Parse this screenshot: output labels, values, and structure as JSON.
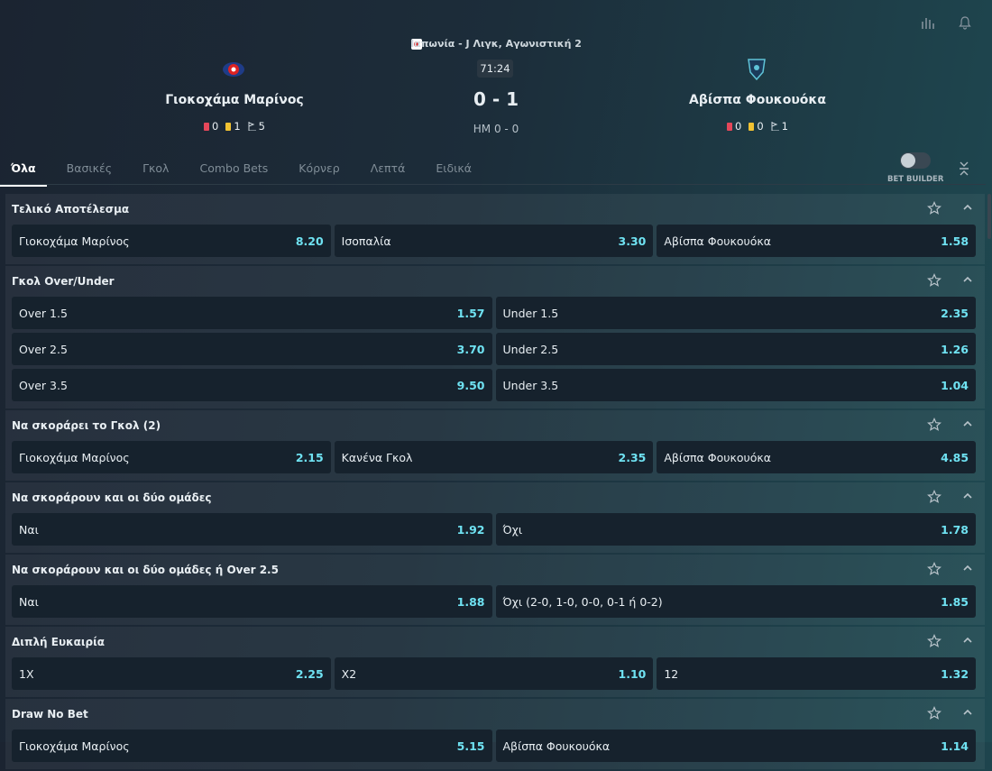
{
  "header": {
    "competition": "Ιαπωνία - J Λιγκ, Αγωνιστική 2",
    "clock": "71:24",
    "score": "0 - 1",
    "halftime": "HM 0 - 0",
    "home": {
      "name": "Γιοκοχάμα Μαρίνος",
      "red": 0,
      "yellow": 1,
      "corners": 5
    },
    "away": {
      "name": "Αβίσπα Φουκουόκα",
      "red": 0,
      "yellow": 0,
      "corners": 1
    }
  },
  "tabs": [
    "Όλα",
    "Βασικές",
    "Γκολ",
    "Combo Bets",
    "Κόρνερ",
    "Λεπτά",
    "Ειδικά"
  ],
  "bet_builder": "BET BUILDER",
  "markets": [
    {
      "title": "Τελικό Αποτέλεσμα",
      "rows": [
        [
          {
            "label": "Γιοκοχάμα Μαρίνος",
            "odds": "8.20"
          },
          {
            "label": "Ισοπαλία",
            "odds": "3.30"
          },
          {
            "label": "Αβίσπα Φουκουόκα",
            "odds": "1.58"
          }
        ]
      ]
    },
    {
      "title": "Γκολ Over/Under",
      "rows": [
        [
          {
            "label": "Over 1.5",
            "odds": "1.57"
          },
          {
            "label": "Under 1.5",
            "odds": "2.35"
          }
        ],
        [
          {
            "label": "Over 2.5",
            "odds": "3.70"
          },
          {
            "label": "Under 2.5",
            "odds": "1.26"
          }
        ],
        [
          {
            "label": "Over 3.5",
            "odds": "9.50"
          },
          {
            "label": "Under 3.5",
            "odds": "1.04"
          }
        ]
      ]
    },
    {
      "title": "Να σκοράρει το Γκολ (2)",
      "rows": [
        [
          {
            "label": "Γιοκοχάμα Μαρίνος",
            "odds": "2.15"
          },
          {
            "label": "Κανένα Γκολ",
            "odds": "2.35"
          },
          {
            "label": "Αβίσπα Φουκουόκα",
            "odds": "4.85"
          }
        ]
      ]
    },
    {
      "title": "Να σκοράρουν και οι δύο ομάδες",
      "rows": [
        [
          {
            "label": "Ναι",
            "odds": "1.92"
          },
          {
            "label": "Όχι",
            "odds": "1.78"
          }
        ]
      ]
    },
    {
      "title": "Να σκοράρουν και οι δύο ομάδες ή Over 2.5",
      "rows": [
        [
          {
            "label": "Ναι",
            "odds": "1.88"
          },
          {
            "label": "Όχι (2-0, 1-0, 0-0, 0-1 ή 0-2)",
            "odds": "1.85"
          }
        ]
      ]
    },
    {
      "title": "Διπλή Ευκαιρία",
      "rows": [
        [
          {
            "label": "1X",
            "odds": "2.25"
          },
          {
            "label": "X2",
            "odds": "1.10"
          },
          {
            "label": "12",
            "odds": "1.32"
          }
        ]
      ]
    },
    {
      "title": "Draw No Bet",
      "rows": [
        [
          {
            "label": "Γιοκοχάμα Μαρίνος",
            "odds": "5.15"
          },
          {
            "label": "Αβίσπα Φουκουόκα",
            "odds": "1.14"
          }
        ]
      ]
    }
  ]
}
